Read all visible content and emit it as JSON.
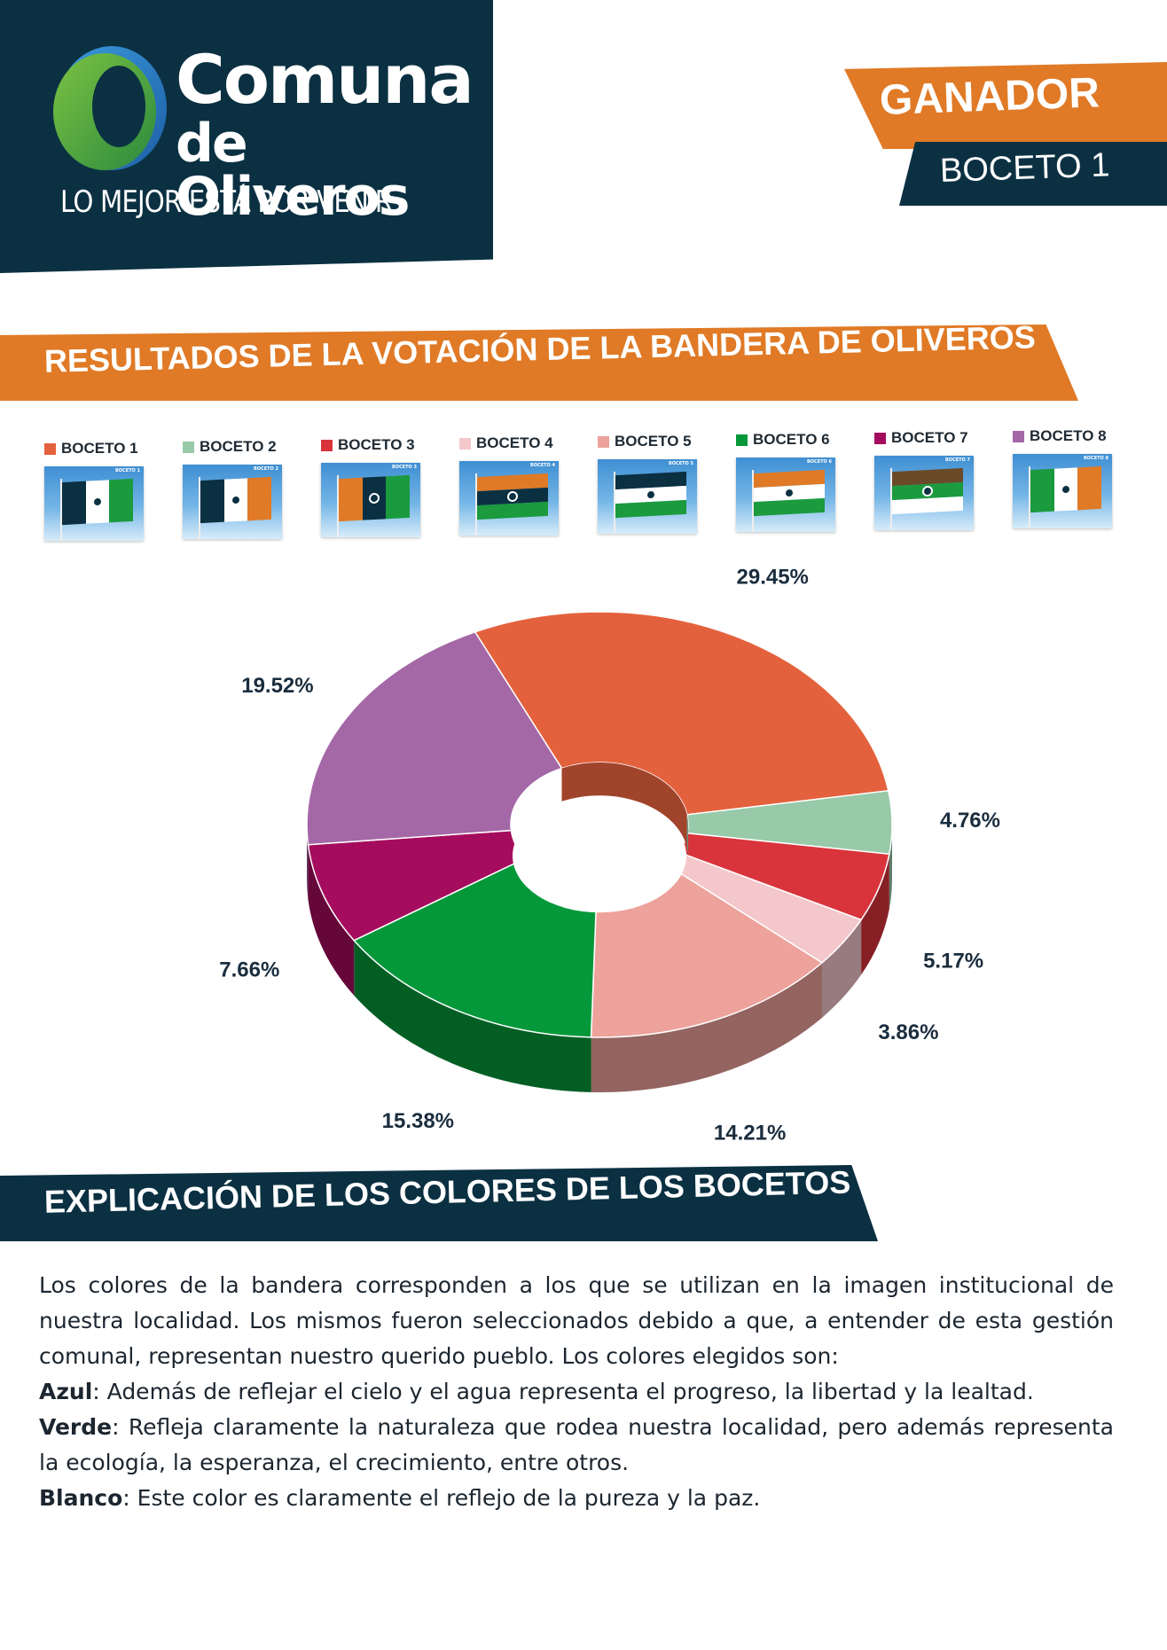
{
  "header": {
    "brand_line1": "Comuna",
    "brand_line2": "de Oliveros",
    "slogan": "LO MEJOR ESTÁ POR VENIR",
    "logo_icon": "comuna-logo-icon",
    "brand_colors": {
      "navy": "#0b3042",
      "orange": "#e07a26",
      "green": "#3a8d3e",
      "blue": "#2d7fc1"
    }
  },
  "winner": {
    "title": "GANADOR",
    "name": "BOCETO 1"
  },
  "results": {
    "title": "RESULTADOS DE LA VOTACIÓN DE LA BANDERA DE OLIVEROS"
  },
  "sketches": [
    {
      "label": "BOCETO 1",
      "tag": "BOCETO 1",
      "orientation": "v",
      "bands": [
        "#0b3042",
        "#ffffff",
        "#1b9a3e"
      ]
    },
    {
      "label": "BOCETO 2",
      "tag": "BOCETO 2",
      "orientation": "v",
      "bands": [
        "#0b3042",
        "#ffffff",
        "#e07a26"
      ]
    },
    {
      "label": "BOCETO 3",
      "tag": "BOCETO 3",
      "orientation": "v",
      "bands": [
        "#e07a26",
        "#0b3042",
        "#1b9a3e"
      ]
    },
    {
      "label": "BOCETO 4",
      "tag": "BOCETO 4",
      "orientation": "h",
      "bands": [
        "#e07a26",
        "#0b3042",
        "#1b9a3e"
      ]
    },
    {
      "label": "BOCETO 5",
      "tag": "BOCETO 5",
      "orientation": "h",
      "bands": [
        "#0b3042",
        "#ffffff",
        "#1b9a3e"
      ]
    },
    {
      "label": "BOCETO 6",
      "tag": "BOCETO 6",
      "orientation": "h",
      "bands": [
        "#e07a26",
        "#ffffff",
        "#1b9a3e"
      ]
    },
    {
      "label": "BOCETO 7",
      "tag": "BOCETO 7",
      "orientation": "h",
      "bands": [
        "#6b4a2a",
        "#1b9a3e",
        "#ffffff"
      ]
    },
    {
      "label": "BOCETO 8",
      "tag": "BOCETO 8",
      "orientation": "v",
      "bands": [
        "#1b9a3e",
        "#ffffff",
        "#e07a26"
      ]
    }
  ],
  "chart_data": {
    "type": "pie",
    "style": "3d-donut",
    "legend_placement": "top",
    "categories": [
      "BOCETO 1",
      "BOCETO 2",
      "BOCETO 3",
      "BOCETO 4",
      "BOCETO 5",
      "BOCETO 6",
      "BOCETO 7",
      "BOCETO 8"
    ],
    "values": [
      29.45,
      4.76,
      5.17,
      3.86,
      14.21,
      15.38,
      7.66,
      19.52
    ],
    "labels": [
      "29.45%",
      "4.76%",
      "5.17%",
      "3.86%",
      "14.21%",
      "15.38%",
      "7.66%",
      "19.52%"
    ],
    "colors": [
      "#e4613d",
      "#98c9a8",
      "#d9343b",
      "#f4c7cb",
      "#eda29b",
      "#05983a",
      "#a50c5e",
      "#a468a6"
    ],
    "title": "",
    "unit": "%"
  },
  "explanation": {
    "title": "EXPLICACIÓN DE LOS COLORES DE LOS BOCETOS",
    "intro": "Los colores de la bandera corresponden a los que se utilizan en la imagen institucional de nuestra localidad. Los mismos fueron seleccionados debido a que, a entender de esta gestión comunal, representan nuestro querido pueblo. Los colores elegidos son:",
    "items": [
      {
        "term": "Azul",
        "text": ": Además de reflejar el cielo y el agua representa el progreso, la libertad y la lealtad."
      },
      {
        "term": "Verde",
        "text": ": Refleja claramente la naturaleza que rodea nuestra localidad, pero además representa la ecología, la esperanza, el crecimiento, entre otros."
      },
      {
        "term": "Blanco",
        "text": ": Este color es claramente el reflejo de la pureza y la paz."
      }
    ]
  }
}
